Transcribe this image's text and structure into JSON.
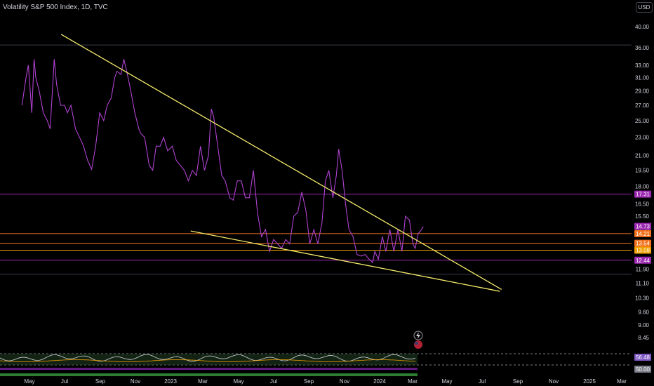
{
  "header": {
    "title": "Volatility S&P 500 Index, 1D, TVC",
    "currency_button": "USD"
  },
  "chart_data": {
    "type": "line",
    "symbol": "Volatility S&P 500 Index",
    "interval": "1D",
    "source": "TVC",
    "currency": "USD",
    "y_scale": "log",
    "price_axis_ticks": [
      "40.00",
      "36.00",
      "33.00",
      "31.00",
      "29.00",
      "27.00",
      "25.00",
      "23.00",
      "21.00",
      "19.50",
      "18.00",
      "16.50",
      "15.50",
      "14.50",
      "11.90",
      "11.10",
      "10.30",
      "9.60",
      "9.00",
      "8.45"
    ],
    "time_axis_labels": [
      "May",
      "Jul",
      "Sep",
      "Nov",
      "2023",
      "Mar",
      "May",
      "Jul",
      "Sep",
      "Nov",
      "2024",
      "Mar",
      "May",
      "Jul",
      "Sep",
      "Nov",
      "2025",
      "Mar"
    ],
    "x_range": [
      "2022-04-15",
      "2025-03-31"
    ],
    "series": [
      {
        "color": "#b043d1",
        "points": [
          [
            "2022-04-18",
            27
          ],
          [
            "2022-04-25",
            31
          ],
          [
            "2022-04-29",
            33
          ],
          [
            "2022-05-05",
            26
          ],
          [
            "2022-05-09",
            34
          ],
          [
            "2022-05-12",
            31
          ],
          [
            "2022-05-18",
            29
          ],
          [
            "2022-05-25",
            26
          ],
          [
            "2022-06-01",
            25
          ],
          [
            "2022-06-06",
            24
          ],
          [
            "2022-06-13",
            34
          ],
          [
            "2022-06-17",
            30
          ],
          [
            "2022-06-24",
            27
          ],
          [
            "2022-07-01",
            27
          ],
          [
            "2022-07-06",
            26
          ],
          [
            "2022-07-12",
            27
          ],
          [
            "2022-07-20",
            24
          ],
          [
            "2022-07-27",
            23
          ],
          [
            "2022-08-03",
            22
          ],
          [
            "2022-08-10",
            20.5
          ],
          [
            "2022-08-17",
            19.6
          ],
          [
            "2022-08-24",
            22
          ],
          [
            "2022-08-31",
            26
          ],
          [
            "2022-09-07",
            25
          ],
          [
            "2022-09-13",
            27
          ],
          [
            "2022-09-20",
            28
          ],
          [
            "2022-09-26",
            31
          ],
          [
            "2022-09-30",
            32
          ],
          [
            "2022-10-07",
            31.5
          ],
          [
            "2022-10-12",
            34
          ],
          [
            "2022-10-17",
            32
          ],
          [
            "2022-10-24",
            29
          ],
          [
            "2022-10-31",
            26
          ],
          [
            "2022-11-07",
            24
          ],
          [
            "2022-11-10",
            23.5
          ],
          [
            "2022-11-17",
            23
          ],
          [
            "2022-11-25",
            20
          ],
          [
            "2022-12-01",
            19.5
          ],
          [
            "2022-12-07",
            22
          ],
          [
            "2022-12-14",
            22
          ],
          [
            "2022-12-20",
            23
          ],
          [
            "2022-12-27",
            21.5
          ],
          [
            "2023-01-04",
            22
          ],
          [
            "2023-01-11",
            20.5
          ],
          [
            "2023-01-18",
            20
          ],
          [
            "2023-01-25",
            19.5
          ],
          [
            "2023-02-01",
            18.5
          ],
          [
            "2023-02-08",
            19.5
          ],
          [
            "2023-02-15",
            19
          ],
          [
            "2023-02-22",
            22
          ],
          [
            "2023-03-01",
            19.5
          ],
          [
            "2023-03-08",
            21
          ],
          [
            "2023-03-13",
            26.5
          ],
          [
            "2023-03-17",
            25.5
          ],
          [
            "2023-03-24",
            22
          ],
          [
            "2023-03-31",
            19
          ],
          [
            "2023-04-06",
            18.5
          ],
          [
            "2023-04-14",
            17
          ],
          [
            "2023-04-20",
            16.8
          ],
          [
            "2023-04-27",
            18.5
          ],
          [
            "2023-05-04",
            18.5
          ],
          [
            "2023-05-11",
            17
          ],
          [
            "2023-05-18",
            17
          ],
          [
            "2023-05-25",
            19.5
          ],
          [
            "2023-06-01",
            15.8
          ],
          [
            "2023-06-08",
            14
          ],
          [
            "2023-06-15",
            14.5
          ],
          [
            "2023-06-22",
            13
          ],
          [
            "2023-06-29",
            13.8
          ],
          [
            "2023-07-06",
            13.5
          ],
          [
            "2023-07-13",
            13.2
          ],
          [
            "2023-07-20",
            13.8
          ],
          [
            "2023-07-27",
            13.5
          ],
          [
            "2023-08-03",
            15.5
          ],
          [
            "2023-08-10",
            15.8
          ],
          [
            "2023-08-17",
            17.5
          ],
          [
            "2023-08-24",
            16
          ],
          [
            "2023-08-31",
            13.5
          ],
          [
            "2023-09-07",
            14.5
          ],
          [
            "2023-09-14",
            13.5
          ],
          [
            "2023-09-21",
            15
          ],
          [
            "2023-09-27",
            18.5
          ],
          [
            "2023-10-03",
            19.5
          ],
          [
            "2023-10-10",
            17
          ],
          [
            "2023-10-16",
            19
          ],
          [
            "2023-10-20",
            21.7
          ],
          [
            "2023-10-26",
            19.5
          ],
          [
            "2023-11-01",
            16.5
          ],
          [
            "2023-11-07",
            14.5
          ],
          [
            "2023-11-14",
            14
          ],
          [
            "2023-11-21",
            12.8
          ],
          [
            "2023-11-28",
            12.7
          ],
          [
            "2023-12-05",
            12.8
          ],
          [
            "2023-12-12",
            12.5
          ],
          [
            "2023-12-18",
            12.3
          ],
          [
            "2023-12-22",
            13
          ],
          [
            "2023-12-28",
            12.5
          ],
          [
            "2024-01-04",
            14
          ],
          [
            "2024-01-10",
            13
          ],
          [
            "2024-01-17",
            14.5
          ],
          [
            "2024-01-24",
            13
          ],
          [
            "2024-01-31",
            14.5
          ],
          [
            "2024-02-07",
            13
          ],
          [
            "2024-02-13",
            15.5
          ],
          [
            "2024-02-20",
            15.2
          ],
          [
            "2024-02-26",
            13.5
          ],
          [
            "2024-03-01",
            13.2
          ],
          [
            "2024-03-06",
            14.2
          ],
          [
            "2024-03-12",
            14.5
          ],
          [
            "2024-03-15",
            14.73
          ]
        ]
      }
    ],
    "trendlines": [
      {
        "color": "#f5eb6b",
        "from": [
          "2022-06-25",
          38.5
        ],
        "to": [
          "2024-07-29",
          10.75
        ]
      },
      {
        "color": "#f5eb6b",
        "from": [
          "2023-02-05",
          14.4
        ],
        "to": [
          "2024-07-26",
          10.65
        ]
      }
    ],
    "horizontal_levels": [
      {
        "value": 36.5,
        "color": "#3a3d4a"
      },
      {
        "value": 17.31,
        "color": "#9c27b0",
        "label": "17.31"
      },
      {
        "value": 14.21,
        "color": "#f2711c",
        "label": "14.21"
      },
      {
        "value": 13.54,
        "color": "#f2711c",
        "label": "13.54"
      },
      {
        "value": 13.08,
        "color": "#f2a000",
        "label": "13.08"
      },
      {
        "value": 12.44,
        "color": "#9c27b0",
        "label": "12.44"
      },
      {
        "value": 11.6,
        "color": "#3a3d4a"
      }
    ],
    "last_price": {
      "value": 14.73,
      "label": "14.73",
      "color": "#9c27b0"
    },
    "indicator": {
      "type": "RSI",
      "level_labels": [
        {
          "text": "56.48",
          "color": "#7e57c2"
        },
        {
          "text": "50.00",
          "color": "#787b86"
        }
      ]
    },
    "event_icons": [
      "flash-event",
      "us-flag-event"
    ]
  }
}
